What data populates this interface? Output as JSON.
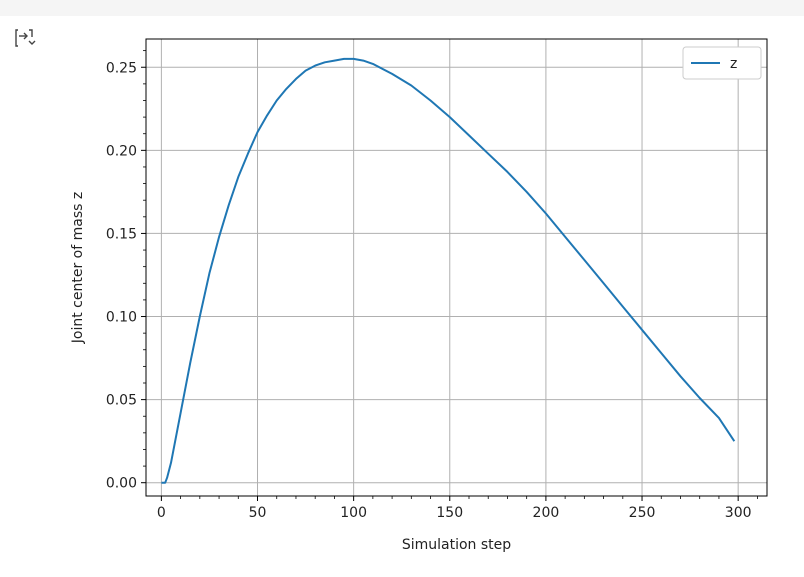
{
  "output_icon": "output-expand-icon",
  "chart_data": {
    "type": "line",
    "title": "",
    "xlabel": "Simulation step",
    "ylabel": "Joint center of mass z",
    "xlim": [
      -8,
      315
    ],
    "ylim": [
      -0.008,
      0.267
    ],
    "xticks": [
      0,
      50,
      100,
      150,
      200,
      250,
      300
    ],
    "xtick_labels": [
      "0",
      "50",
      "100",
      "150",
      "200",
      "250",
      "300"
    ],
    "yticks": [
      0.0,
      0.05,
      0.1,
      0.15,
      0.2,
      0.25
    ],
    "ytick_labels": [
      "0.00",
      "0.05",
      "0.10",
      "0.15",
      "0.20",
      "0.25"
    ],
    "grid": true,
    "legend_position": "top-right",
    "series": [
      {
        "name": "z",
        "color": "#1f77b4",
        "x": [
          0,
          2,
          3,
          5,
          10,
          15,
          20,
          25,
          30,
          35,
          40,
          45,
          50,
          55,
          60,
          65,
          70,
          75,
          80,
          85,
          90,
          95,
          100,
          105,
          110,
          120,
          130,
          140,
          150,
          160,
          170,
          180,
          190,
          200,
          210,
          220,
          230,
          240,
          250,
          260,
          270,
          280,
          290,
          298
        ],
        "y": [
          0.0,
          0.0,
          0.003,
          0.012,
          0.042,
          0.072,
          0.1,
          0.126,
          0.148,
          0.167,
          0.184,
          0.198,
          0.211,
          0.221,
          0.23,
          0.237,
          0.243,
          0.248,
          0.251,
          0.253,
          0.254,
          0.255,
          0.255,
          0.254,
          0.252,
          0.246,
          0.239,
          0.23,
          0.22,
          0.209,
          0.198,
          0.187,
          0.175,
          0.162,
          0.148,
          0.134,
          0.12,
          0.106,
          0.092,
          0.078,
          0.064,
          0.051,
          0.039,
          0.025
        ]
      }
    ]
  }
}
